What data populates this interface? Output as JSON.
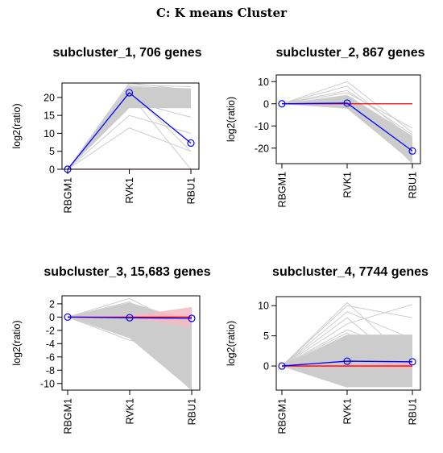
{
  "figure": {
    "title": "C: K means Cluster",
    "ylabel": "log2(ratio)",
    "colors": {
      "profile_lines": "#cccccc",
      "centroid": "#0000ff",
      "zero_line": "#ff0000",
      "band": "#f4b9c2",
      "axes": "#000000"
    }
  },
  "chart_data": [
    {
      "type": "line",
      "title": "subcluster_1, 706 genes",
      "ylabel": "log2(ratio)",
      "categories": [
        "RBGM1",
        "RVK1",
        "RBU1"
      ],
      "ylim": [
        0,
        24
      ],
      "yticks": [
        0,
        5,
        10,
        15,
        20
      ],
      "centroid": [
        0,
        21.3,
        7.3
      ],
      "zero_band": [
        0,
        0,
        0
      ],
      "profiles": [
        [
          0,
          21,
          0
        ],
        [
          0,
          22,
          5
        ],
        [
          0,
          11.5,
          5
        ],
        [
          0,
          19,
          14.5
        ],
        [
          0,
          23.5,
          23
        ],
        [
          0,
          22.5,
          19
        ],
        [
          0,
          20,
          17.5
        ],
        [
          0,
          24,
          22
        ],
        [
          0,
          15,
          10
        ]
      ],
      "envelope": {
        "top": [
          0,
          23.2,
          22.5
        ],
        "bottom": [
          0,
          17,
          17
        ]
      }
    },
    {
      "type": "line",
      "title": "subcluster_2, 867 genes",
      "ylabel": "log2(ratio)",
      "categories": [
        "RBGM1",
        "RVK1",
        "RBU1"
      ],
      "ylim": [
        -27,
        13
      ],
      "yticks": [
        -20,
        -10,
        0,
        10
      ],
      "centroid": [
        0,
        0.3,
        -21.3
      ],
      "zero_band": [
        0,
        0,
        0
      ],
      "profiles": [
        [
          0,
          10,
          -13
        ],
        [
          0,
          8,
          -16
        ],
        [
          0,
          5,
          -11
        ],
        [
          0,
          3,
          -25
        ],
        [
          0,
          2.5,
          -27
        ],
        [
          0,
          -2,
          -26
        ],
        [
          0,
          -1,
          -18
        ],
        [
          0,
          6,
          -14
        ]
      ],
      "envelope": {
        "top": [
          0,
          4,
          -14.5
        ],
        "bottom": [
          0,
          -2,
          -26.5
        ]
      }
    },
    {
      "type": "line",
      "title": "subcluster_3, 15,683 genes",
      "ylabel": "log2(ratio)",
      "categories": [
        "RBGM1",
        "RVK1",
        "RBU1"
      ],
      "ylim": [
        -11,
        3.2
      ],
      "yticks": [
        -10,
        -8,
        -6,
        -4,
        -2,
        0,
        2
      ],
      "centroid": [
        0,
        -0.1,
        -0.2
      ],
      "zero_band": [
        0.2,
        0.2,
        1.5
      ],
      "profiles": [
        [
          0,
          2.8,
          -2
        ],
        [
          0,
          2.3,
          -6
        ],
        [
          0,
          -3.5,
          -5
        ],
        [
          0,
          1.8,
          -10.8
        ],
        [
          0,
          -2.5,
          -11
        ],
        [
          0,
          1.2,
          -8.5
        ]
      ],
      "envelope": {
        "top": [
          0,
          2.2,
          -0.6
        ],
        "bottom": [
          0,
          -3.2,
          -11
        ]
      }
    },
    {
      "type": "line",
      "title": "subcluster_4, 7744 genes",
      "ylabel": "log2(ratio)",
      "categories": [
        "RBGM1",
        "RVK1",
        "RBU1"
      ],
      "ylim": [
        -4,
        11.5
      ],
      "yticks": [
        0,
        5,
        10
      ],
      "centroid": [
        0,
        0.8,
        0.7
      ],
      "zero_band": [
        0.2,
        0.2,
        0.5
      ],
      "profiles": [
        [
          0,
          10.5,
          0.5
        ],
        [
          0,
          10,
          8
        ],
        [
          0,
          9,
          4.5
        ],
        [
          0,
          7,
          10.2
        ],
        [
          0,
          6,
          2
        ],
        [
          0,
          8,
          -1
        ],
        [
          0,
          4.5,
          3
        ],
        [
          0,
          -3.5,
          5
        ],
        [
          0,
          5.5,
          -2.5
        ],
        [
          0,
          3,
          1
        ]
      ],
      "envelope": {
        "top": [
          0,
          5.2,
          5.2
        ],
        "bottom": [
          0,
          -3.5,
          -3.5
        ]
      }
    }
  ]
}
